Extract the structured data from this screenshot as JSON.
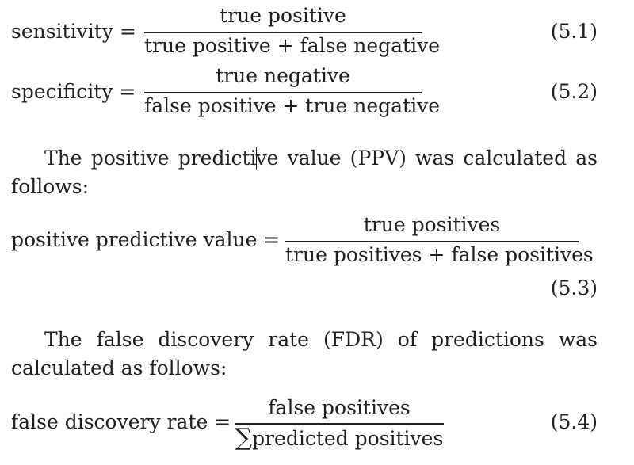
{
  "eq1": {
    "lhs": "sensitivity =",
    "numerator": "true positive",
    "denominator": "true positive + false negative",
    "number": "(5.1)"
  },
  "eq2": {
    "lhs": "specificity =",
    "numerator": "true negative",
    "denominator": "false positive + true negative",
    "number": "(5.2)"
  },
  "para1": {
    "before_cursor": "The positive predicti",
    "after_cursor": "ve value (PPV) was calculated as follows:"
  },
  "eq3": {
    "lhs": "positive predictive value =",
    "numerator": "true positives",
    "denominator": "true positives + false positives",
    "number": "(5.3)"
  },
  "para2": {
    "text": "The false discovery rate (FDR) of predictions was calculated as follows:"
  },
  "eq4": {
    "lhs": "false discovery rate =",
    "numerator": "false positives",
    "sum_symbol": "∑",
    "denominator": "predicted positives",
    "number": "(5.4)"
  }
}
